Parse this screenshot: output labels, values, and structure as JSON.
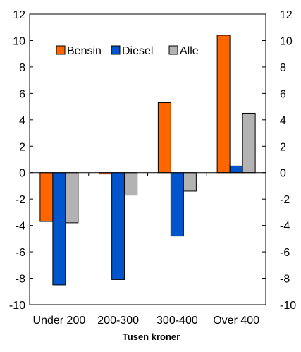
{
  "chart_data": {
    "type": "bar",
    "categories": [
      "Under 200",
      "200-300",
      "300-400",
      "Over 400"
    ],
    "series": [
      {
        "name": "Bensin",
        "color": "#ff6600",
        "values": [
          -3.7,
          -0.1,
          5.3,
          10.4
        ]
      },
      {
        "name": "Diesel",
        "color": "#0055cc",
        "values": [
          -8.5,
          -8.1,
          -4.8,
          0.5
        ]
      },
      {
        "name": "Alle",
        "color": "#b3b3b3",
        "values": [
          -3.8,
          -1.7,
          -1.4,
          4.5
        ]
      }
    ],
    "xlabel": "Tusen kroner",
    "ylabel": "",
    "ylim": [
      -10,
      12
    ],
    "yticks": [
      "-10",
      "-8",
      "-6",
      "-4",
      "-2",
      "0",
      "2",
      "4",
      "6",
      "8",
      "10",
      "12"
    ],
    "secondary_axis": true,
    "grid": false,
    "legend_position": "top-left"
  }
}
